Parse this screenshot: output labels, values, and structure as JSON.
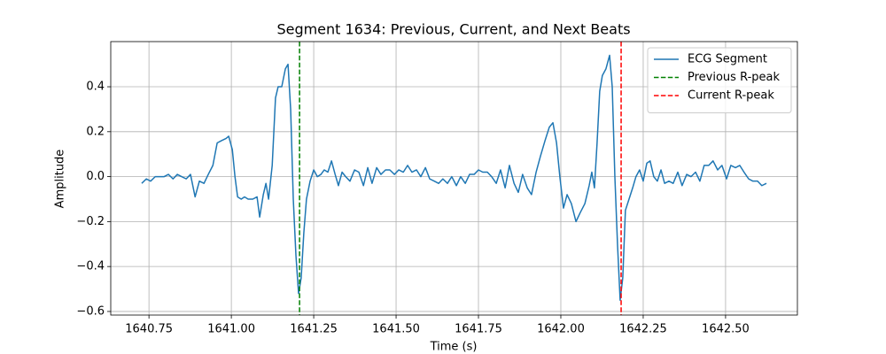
{
  "chart_data": {
    "type": "line",
    "title": "Segment 1634: Previous, Current, and Next Beats",
    "xlabel": "Time (s)",
    "ylabel": "Amplitude",
    "xlim": [
      1640.634,
      1642.718
    ],
    "ylim": [
      -0.616,
      0.601
    ],
    "xticks": [
      1640.75,
      {
        "value": 1641,
        "label": "1641.00"
      },
      1641.25,
      {
        "value": 1641.5,
        "label": "1641.50"
      },
      1641.75,
      {
        "value": 1642,
        "label": "1642.00"
      },
      1642.25,
      {
        "value": 1642.5,
        "label": "1642.50"
      }
    ],
    "yticks": [
      {
        "value": -0.6,
        "label": "−0.6"
      },
      {
        "value": -0.4,
        "label": "−0.4"
      },
      {
        "value": -0.2,
        "label": "−0.2"
      },
      {
        "value": 0,
        "label": "0.0"
      },
      0.2,
      0.4
    ],
    "grid": true,
    "legend": "upper right",
    "series": [
      {
        "name": "ECG Segment",
        "color": "#1f77b4",
        "x": [
          1640.728,
          1640.742,
          1640.755,
          1640.769,
          1640.782,
          1640.796,
          1640.809,
          1640.823,
          1640.836,
          1640.849,
          1640.863,
          1640.876,
          1640.89,
          1640.903,
          1640.917,
          1640.93,
          1640.944,
          1640.957,
          1640.97,
          1640.984,
          1640.992,
          1641.003,
          1641.011,
          1641.019,
          1641.03,
          1641.04,
          1641.051,
          1641.065,
          1641.078,
          1641.086,
          1641.097,
          1641.105,
          1641.113,
          1641.124,
          1641.134,
          1641.142,
          1641.153,
          1641.164,
          1641.172,
          1641.18,
          1641.188,
          1641.196,
          1641.204,
          1641.212,
          1641.22,
          1641.228,
          1641.239,
          1641.25,
          1641.261,
          1641.272,
          1641.282,
          1641.293,
          1641.304,
          1641.315,
          1641.325,
          1641.336,
          1641.347,
          1641.36,
          1641.374,
          1641.387,
          1641.401,
          1641.414,
          1641.427,
          1641.441,
          1641.454,
          1641.468,
          1641.481,
          1641.495,
          1641.508,
          1641.522,
          1641.535,
          1641.548,
          1641.562,
          1641.575,
          1641.589,
          1641.602,
          1641.616,
          1641.629,
          1641.642,
          1641.656,
          1641.669,
          1641.683,
          1641.696,
          1641.71,
          1641.723,
          1641.737,
          1641.75,
          1641.763,
          1641.777,
          1641.79,
          1641.804,
          1641.817,
          1641.831,
          1641.844,
          1641.858,
          1641.871,
          1641.884,
          1641.898,
          1641.911,
          1641.925,
          1641.938,
          1641.952,
          1641.965,
          1641.976,
          1641.987,
          1641.997,
          1642.008,
          1642.019,
          1642.032,
          1642.046,
          1642.059,
          1642.073,
          1642.086,
          1642.094,
          1642.102,
          1642.11,
          1642.118,
          1642.126,
          1642.137,
          1642.148,
          1642.156,
          1642.164,
          1642.172,
          1642.18,
          1642.188,
          1642.196,
          1642.207,
          1642.218,
          1642.228,
          1642.239,
          1642.25,
          1642.261,
          1642.271,
          1642.282,
          1642.293,
          1642.304,
          1642.315,
          1642.328,
          1642.341,
          1642.355,
          1642.368,
          1642.382,
          1642.395,
          1642.409,
          1642.422,
          1642.435,
          1642.449,
          1642.462,
          1642.476,
          1642.489,
          1642.503,
          1642.516,
          1642.53,
          1642.543,
          1642.556,
          1642.57,
          1642.583,
          1642.597,
          1642.61,
          1642.624
        ],
        "values": [
          -0.03,
          -0.01,
          -0.02,
          0.0,
          0.0,
          0.0,
          0.01,
          -0.01,
          0.01,
          0.0,
          -0.01,
          0.01,
          -0.09,
          -0.02,
          -0.03,
          0.01,
          0.05,
          0.15,
          0.16,
          0.17,
          0.18,
          0.12,
          0.0,
          -0.09,
          -0.1,
          -0.09,
          -0.1,
          -0.1,
          -0.09,
          -0.18,
          -0.08,
          -0.03,
          -0.1,
          0.05,
          0.35,
          0.4,
          0.4,
          0.48,
          0.5,
          0.3,
          -0.1,
          -0.35,
          -0.52,
          -0.45,
          -0.25,
          -0.1,
          -0.02,
          0.03,
          0.0,
          0.01,
          0.03,
          0.02,
          0.07,
          0.01,
          -0.04,
          0.02,
          0.0,
          -0.02,
          0.03,
          0.02,
          -0.04,
          0.04,
          -0.03,
          0.04,
          0.01,
          0.03,
          0.03,
          0.01,
          0.03,
          0.02,
          0.05,
          0.02,
          0.03,
          0.0,
          0.04,
          -0.01,
          -0.02,
          -0.03,
          -0.01,
          -0.03,
          0.0,
          -0.04,
          0.0,
          -0.03,
          0.01,
          0.01,
          0.03,
          0.02,
          0.02,
          0.0,
          -0.03,
          0.03,
          -0.05,
          0.05,
          -0.03,
          -0.07,
          0.01,
          -0.05,
          -0.08,
          0.02,
          0.09,
          0.16,
          0.22,
          0.24,
          0.15,
          0.0,
          -0.14,
          -0.08,
          -0.12,
          -0.2,
          -0.16,
          -0.12,
          -0.04,
          0.02,
          -0.05,
          0.15,
          0.38,
          0.45,
          0.48,
          0.54,
          0.4,
          0.0,
          -0.3,
          -0.55,
          -0.45,
          -0.15,
          -0.1,
          -0.05,
          0.0,
          0.03,
          -0.02,
          0.06,
          0.07,
          0.0,
          -0.02,
          0.03,
          -0.03,
          -0.02,
          -0.03,
          0.02,
          -0.04,
          0.01,
          0.0,
          0.02,
          -0.02,
          0.05,
          0.05,
          0.07,
          0.03,
          0.05,
          -0.01,
          0.05,
          0.04,
          0.05,
          0.02,
          -0.01,
          -0.02,
          -0.02,
          -0.04,
          -0.03
        ]
      }
    ],
    "reference_lines": [
      {
        "name": "Previous R-peak",
        "x": 1641.207,
        "color": "green",
        "style": "dashed"
      },
      {
        "name": "Current R-peak",
        "x": 1642.183,
        "color": "red",
        "style": "dashed"
      }
    ]
  }
}
